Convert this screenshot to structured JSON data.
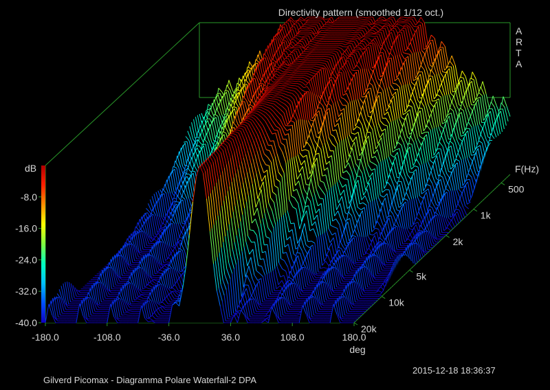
{
  "chart_data": {
    "type": "waterfall-3d",
    "title": "Directivity pattern (smoothed 1/12 oct.)",
    "brand": [
      "A",
      "R",
      "T",
      "A"
    ],
    "x_axis": {
      "label": "deg",
      "range": [
        -180,
        180
      ],
      "ticks": [
        "-180.0",
        "-108.0",
        "-36.0",
        "36.0",
        "108.0",
        "180.0"
      ],
      "tick_values": [
        -180,
        -108,
        -36,
        36,
        108,
        180
      ]
    },
    "z_axis": {
      "label": "dB",
      "range": [
        -40,
        0
      ],
      "ticks": [
        "-8.0",
        "-16.0",
        "-24.0",
        "-32.0",
        "-40.0"
      ],
      "tick_values": [
        -8,
        -16,
        -24,
        -32,
        -40
      ],
      "colormap": [
        "#b00000",
        "#ff2000",
        "#ff9000",
        "#ffff00",
        "#80ff40",
        "#00ffc0",
        "#00c0ff",
        "#0050ff",
        "#1000c0"
      ]
    },
    "y_axis": {
      "label": "F(Hz)",
      "ticks": [
        "500",
        "1k",
        "2k",
        "5k",
        "10k",
        "20k"
      ],
      "tick_values": [
        500,
        1000,
        2000,
        5000,
        10000,
        20000
      ],
      "range": [
        400,
        20000
      ],
      "scale": "log"
    },
    "series_count": 80,
    "peak": {
      "angle_deg": 0,
      "level_db": 0
    },
    "grid": false
  },
  "footer": {
    "left": "Gilverd Picomax - Diagramma Polare Waterfall-2     DPA",
    "right": "2015-12-18  18:36:37"
  }
}
